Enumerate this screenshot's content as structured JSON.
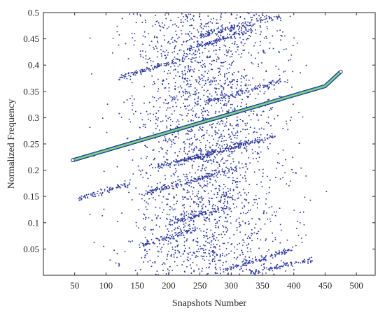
{
  "chart_data": {
    "type": "scatter",
    "xlabel": "Snapshots Number",
    "ylabel": "Normalized Frequency",
    "xlim": [
      0,
      530
    ],
    "ylim": [
      0,
      0.5
    ],
    "x_ticks": [
      50,
      100,
      150,
      200,
      250,
      300,
      350,
      400,
      450,
      500
    ],
    "y_ticks": [
      0.05,
      0.1,
      0.15,
      0.2,
      0.25,
      0.3,
      0.35,
      0.4,
      0.45,
      0.5
    ],
    "grid": false,
    "box": true,
    "colors": {
      "points": "#2e3a9e",
      "line_outer": "#2fb0c8",
      "line_inner": "#c7d63a",
      "axes": "#262626"
    },
    "series": [
      {
        "kind": "dominant_line",
        "x": [
          47,
          100,
          150,
          200,
          250,
          300,
          350,
          400,
          450,
          475
        ],
        "y": [
          0.219,
          0.2375,
          0.255,
          0.2725,
          0.29,
          0.3075,
          0.325,
          0.3425,
          0.36,
          0.3875
        ]
      },
      {
        "kind": "streaks",
        "segments": [
          {
            "x0": 55,
            "x1": 140,
            "y0": 0.145,
            "y1": 0.175
          },
          {
            "x0": 160,
            "x1": 310,
            "y0": 0.155,
            "y1": 0.205
          },
          {
            "x0": 180,
            "x1": 330,
            "y0": 0.205,
            "y1": 0.255
          },
          {
            "x0": 220,
            "x1": 370,
            "y0": 0.215,
            "y1": 0.265
          },
          {
            "x0": 120,
            "x1": 230,
            "y0": 0.375,
            "y1": 0.415
          },
          {
            "x0": 230,
            "x1": 340,
            "y0": 0.43,
            "y1": 0.47
          },
          {
            "x0": 250,
            "x1": 380,
            "y0": 0.455,
            "y1": 0.495
          },
          {
            "x0": 150,
            "x1": 250,
            "y0": 0.055,
            "y1": 0.09
          },
          {
            "x0": 290,
            "x1": 400,
            "y0": 0.01,
            "y1": 0.05
          },
          {
            "x0": 330,
            "x1": 430,
            "y0": 0.005,
            "y1": 0.03
          },
          {
            "x0": 200,
            "x1": 300,
            "y0": 0.1,
            "y1": 0.13
          },
          {
            "x0": 260,
            "x1": 380,
            "y0": 0.33,
            "y1": 0.37
          }
        ]
      },
      {
        "kind": "cloud",
        "x_center": 262,
        "x_spread": 62,
        "x_range": [
          55,
          470
        ],
        "y_range": [
          0.0,
          0.5
        ],
        "count": 2400
      }
    ]
  }
}
